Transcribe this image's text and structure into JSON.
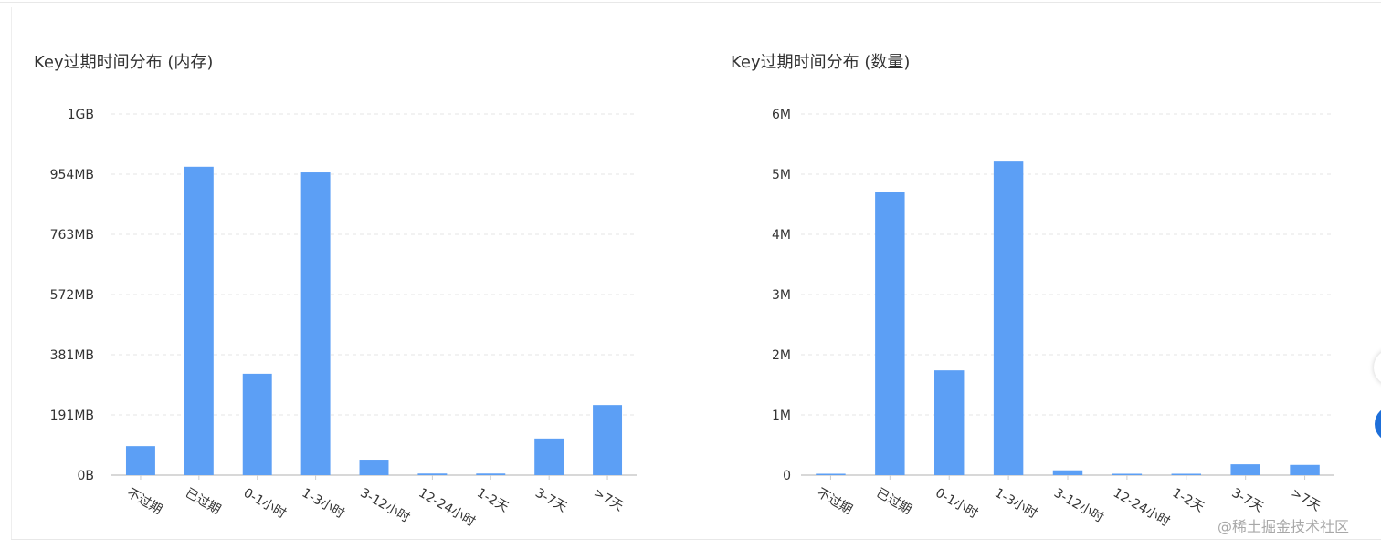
{
  "charts_titles": [
    "Key过期时间分布 (内存)",
    "Key过期时间分布 (数量)"
  ],
  "watermark": "@稀土掘金技术社区",
  "colors": {
    "bar": "#5c9ff5",
    "grid": "#e6e6e6",
    "axis": "#cccccc",
    "text": "#333333"
  },
  "chart_data": [
    {
      "type": "bar",
      "title": "Key过期时间分布 (内存)",
      "categories": [
        "不过期",
        "已过期",
        "0-1小时",
        "1-3小时",
        "3-12小时",
        "12-24小时",
        "1-2天",
        "3-7天",
        ">7天"
      ],
      "values": [
        92,
        977,
        321,
        959,
        49,
        5,
        5,
        116,
        222
      ],
      "unit": "MB",
      "yticks": [
        "0B",
        "191MB",
        "381MB",
        "572MB",
        "763MB",
        "954MB",
        "1GB"
      ],
      "ylim": [
        0,
        1144
      ],
      "grid": true
    },
    {
      "type": "bar",
      "title": "Key过期时间分布 (数量)",
      "categories": [
        "不过期",
        "已过期",
        "0-1小时",
        "1-3小时",
        "3-12小时",
        "12-24小时",
        "1-2天",
        "3-7天",
        ">7天"
      ],
      "values": [
        0.01,
        4.7,
        1.74,
        5.21,
        0.08,
        0.005,
        0.01,
        0.18,
        0.17
      ],
      "unit": "M",
      "yticks": [
        "0",
        "1M",
        "2M",
        "3M",
        "4M",
        "5M",
        "6M"
      ],
      "ylim": [
        0,
        6
      ],
      "grid": true
    }
  ]
}
